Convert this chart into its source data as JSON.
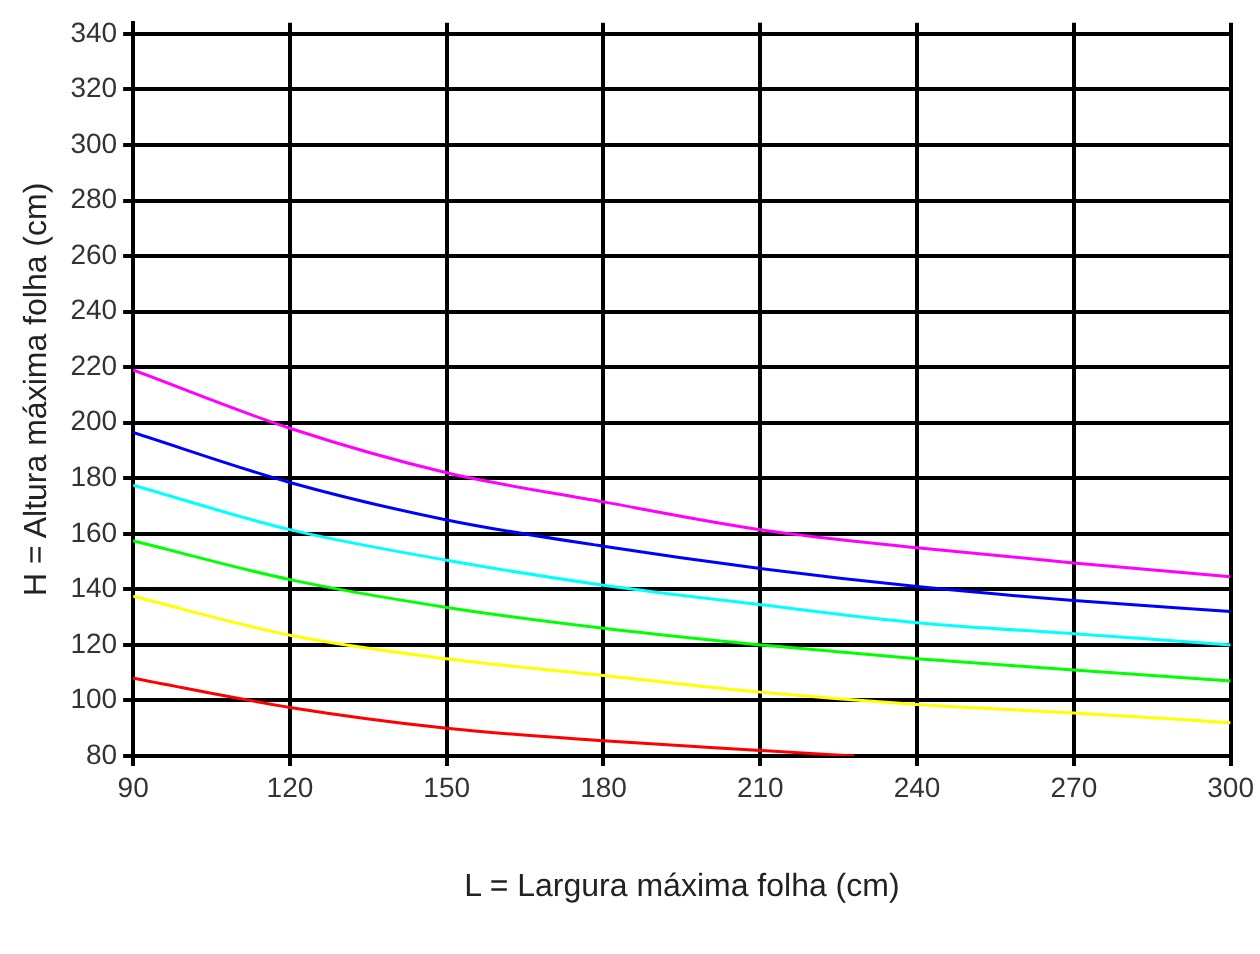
{
  "chart_data": {
    "type": "line",
    "xlabel": "L = Largura máxima folha (cm)",
    "ylabel": "H = Altura máxima folha (cm)",
    "x": [
      90,
      120,
      150,
      180,
      210,
      240,
      270,
      300
    ],
    "series": [
      {
        "color": "#ff00ff",
        "values": [
          219,
          198,
          182,
          171.5,
          161.5,
          155,
          149.5,
          144.5
        ]
      },
      {
        "color": "#0000ff",
        "values": [
          196.5,
          178.5,
          165,
          155.5,
          147.5,
          141,
          136,
          132
        ]
      },
      {
        "color": "#00ffff",
        "values": [
          177.5,
          161.5,
          150.5,
          141.5,
          134.5,
          128,
          124,
          120
        ]
      },
      {
        "color": "#00ff00",
        "values": [
          157.5,
          143.5,
          133.5,
          126,
          120,
          115,
          111,
          107
        ]
      },
      {
        "color": "#ffff00",
        "values": [
          137.5,
          123.5,
          115,
          109,
          103,
          98.5,
          95.5,
          92
        ]
      },
      {
        "color": "#ff0000",
        "x": [
          90,
          120,
          150,
          180,
          210,
          228
        ],
        "values": [
          108,
          97.5,
          90,
          85.5,
          82,
          80
        ]
      }
    ],
    "xlim": [
      90,
      300
    ],
    "ylim": [
      80,
      344
    ],
    "xticks": [
      90,
      120,
      150,
      180,
      210,
      240,
      270,
      300
    ],
    "yticks": [
      80,
      100,
      120,
      140,
      160,
      180,
      200,
      220,
      240,
      260,
      280,
      300,
      320,
      340
    ],
    "grid": true,
    "marker": "none",
    "line_style": "solid",
    "legend": false
  }
}
